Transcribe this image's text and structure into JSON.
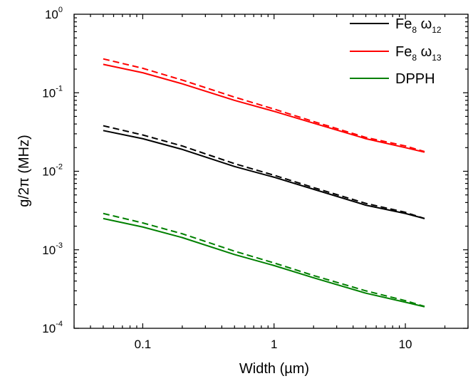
{
  "chart_data": {
    "type": "line",
    "xscale": "log",
    "yscale": "log",
    "xlim": [
      0.03,
      30
    ],
    "ylim": [
      0.0001,
      1
    ],
    "xlabel": "Width (µm)",
    "ylabel": "g/2π (MHz)",
    "grid": false,
    "legend_position": "top-right",
    "x_ticks": [
      {
        "value": 0.1,
        "label": "0.1"
      },
      {
        "value": 1,
        "label": "1"
      },
      {
        "value": 10,
        "label": "10"
      }
    ],
    "y_ticks": [
      {
        "value": 1,
        "base": "10",
        "exp": "0"
      },
      {
        "value": 0.1,
        "base": "10",
        "exp": "-1"
      },
      {
        "value": 0.01,
        "base": "10",
        "exp": "-2"
      },
      {
        "value": 0.001,
        "base": "10",
        "exp": "-3"
      },
      {
        "value": 0.0001,
        "base": "10",
        "exp": "-4"
      }
    ],
    "legend": [
      {
        "main": "Fe",
        "sub1": "8",
        "mid": " ω",
        "sub2": "12",
        "color": "#000000"
      },
      {
        "main": "Fe",
        "sub1": "8",
        "mid": " ω",
        "sub2": "13",
        "color": "#ff0000"
      },
      {
        "main": "DPPH",
        "sub1": "",
        "mid": "",
        "sub2": "",
        "color": "#008000"
      }
    ],
    "series": [
      {
        "color": "#000000",
        "style": "solid",
        "x": [
          0.05,
          0.1,
          0.2,
          0.5,
          1,
          2,
          5,
          10,
          14
        ],
        "y": [
          0.033,
          0.026,
          0.019,
          0.0115,
          0.0084,
          0.0059,
          0.0037,
          0.0029,
          0.0025
        ]
      },
      {
        "color": "#000000",
        "style": "dashed",
        "x": [
          0.05,
          0.1,
          0.2,
          0.5,
          1,
          2,
          5,
          10,
          14
        ],
        "y": [
          0.038,
          0.029,
          0.021,
          0.0125,
          0.0089,
          0.0062,
          0.0039,
          0.003,
          0.0025
        ]
      },
      {
        "color": "#ff0000",
        "style": "solid",
        "x": [
          0.05,
          0.1,
          0.2,
          0.5,
          1,
          2,
          5,
          10,
          14
        ],
        "y": [
          0.23,
          0.18,
          0.13,
          0.08,
          0.058,
          0.041,
          0.026,
          0.02,
          0.0175
        ]
      },
      {
        "color": "#ff0000",
        "style": "dashed",
        "x": [
          0.05,
          0.1,
          0.2,
          0.5,
          1,
          2,
          5,
          10,
          14
        ],
        "y": [
          0.27,
          0.205,
          0.145,
          0.088,
          0.062,
          0.043,
          0.027,
          0.021,
          0.0178
        ]
      },
      {
        "color": "#008000",
        "style": "solid",
        "x": [
          0.05,
          0.1,
          0.2,
          0.5,
          1,
          2,
          5,
          10,
          14
        ],
        "y": [
          0.0025,
          0.00195,
          0.00143,
          0.00087,
          0.00063,
          0.00044,
          0.00028,
          0.000215,
          0.000188
        ]
      },
      {
        "color": "#008000",
        "style": "dashed",
        "x": [
          0.05,
          0.1,
          0.2,
          0.5,
          1,
          2,
          5,
          10,
          14
        ],
        "y": [
          0.0029,
          0.0022,
          0.0016,
          0.00096,
          0.00068,
          0.00047,
          0.0003,
          0.000225,
          0.00019
        ]
      }
    ]
  }
}
